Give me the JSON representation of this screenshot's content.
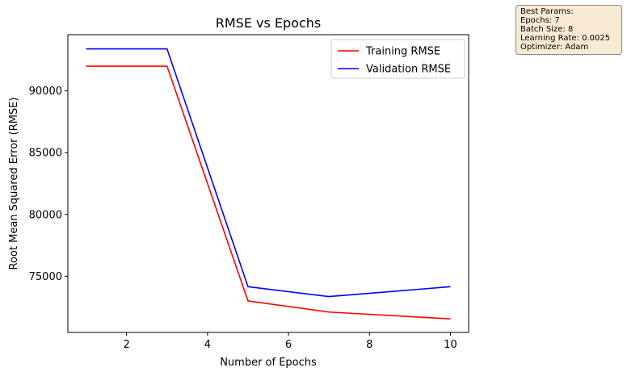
{
  "chart_data": {
    "type": "line",
    "title": "RMSE vs Epochs",
    "xlabel": "Number of Epochs",
    "ylabel": "Root Mean Squared Error (RMSE)",
    "xlim": [
      0.55,
      10.45
    ],
    "ylim": [
      70450,
      94550
    ],
    "xticks": [
      2,
      4,
      6,
      8,
      10
    ],
    "yticks": [
      75000,
      80000,
      85000,
      90000
    ],
    "grid": false,
    "legend_position": "top-right",
    "series": [
      {
        "name": "Training RMSE",
        "color": "#ff0000",
        "x": [
          1,
          3,
          5,
          7,
          10
        ],
        "y": [
          92000,
          92000,
          73000,
          72100,
          71550
        ]
      },
      {
        "name": "Validation RMSE",
        "color": "#0000ff",
        "x": [
          1,
          3,
          5,
          7,
          10
        ],
        "y": [
          93400,
          93400,
          74150,
          73350,
          74150
        ]
      }
    ]
  },
  "params_box": {
    "lines": [
      "Best Params:",
      "Epochs: 7",
      "Batch Size: 8",
      "Learning Rate: 0.0025",
      "Optimizer: Adam"
    ]
  }
}
